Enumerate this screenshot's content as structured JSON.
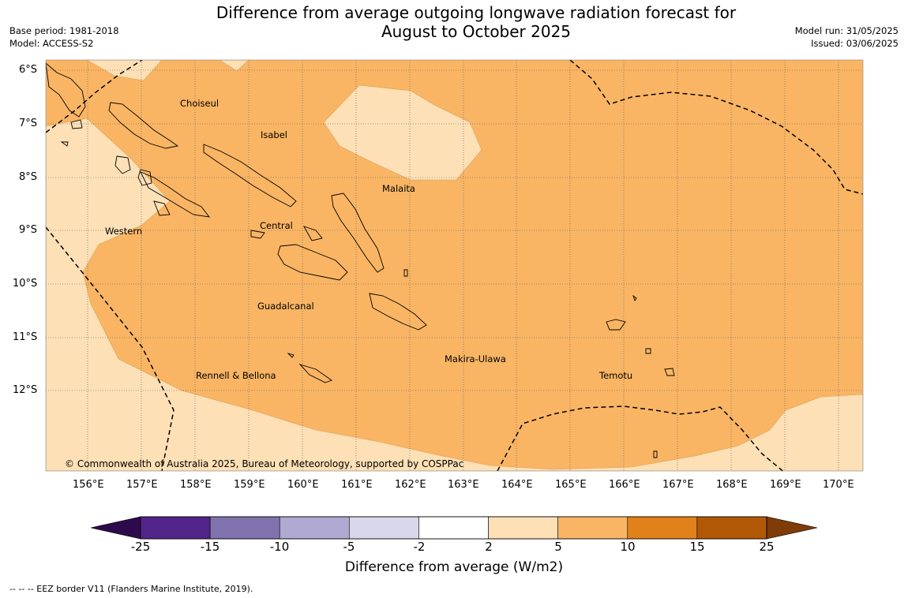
{
  "title_line1": "Difference from average outgoing longwave radiation forecast for",
  "title_line2": "August to October 2025",
  "base_period": "Base period: 1981-2018",
  "model": "Model: ACCESS-S2",
  "model_run": "Model run: 31/05/2025",
  "issued": "Issued: 03/06/2025",
  "lat_labels": [
    "6°S",
    "7°S",
    "8°S",
    "9°S",
    "10°S",
    "11°S",
    "12°S"
  ],
  "lon_labels": [
    "156°E",
    "157°E",
    "158°E",
    "159°E",
    "160°E",
    "161°E",
    "162°E",
    "163°E",
    "164°E",
    "165°E",
    "166°E",
    "167°E",
    "168°E",
    "169°E",
    "170°E"
  ],
  "regions": [
    "Choiseul",
    "Isabel",
    "Malaita",
    "Western",
    "Central",
    "Guadalcanal",
    "Makira-Ulawa",
    "Rennell & Bellona",
    "Temotu"
  ],
  "copyright": "© Commonwealth of Australia 2025, Bureau of Meteorology, supported by COSPPac",
  "colorbar": {
    "title": "Difference from average (W/m2)",
    "ticks": [
      "-25",
      "-15",
      "-10",
      "-5",
      "-2",
      "2",
      "5",
      "10",
      "15",
      "25"
    ],
    "colors": [
      "#52258a",
      "#8073ad",
      "#b0a9d1",
      "#d8d8ea",
      "#ffffff",
      "#fde0b6",
      "#f9b564",
      "#e1811a",
      "#b15806"
    ],
    "under_color": "#2d0a4b",
    "over_color": "#7f3b08"
  },
  "footnote": "--  --  -- EEZ border V11 (Flanders Marine Institute, 2019)."
}
